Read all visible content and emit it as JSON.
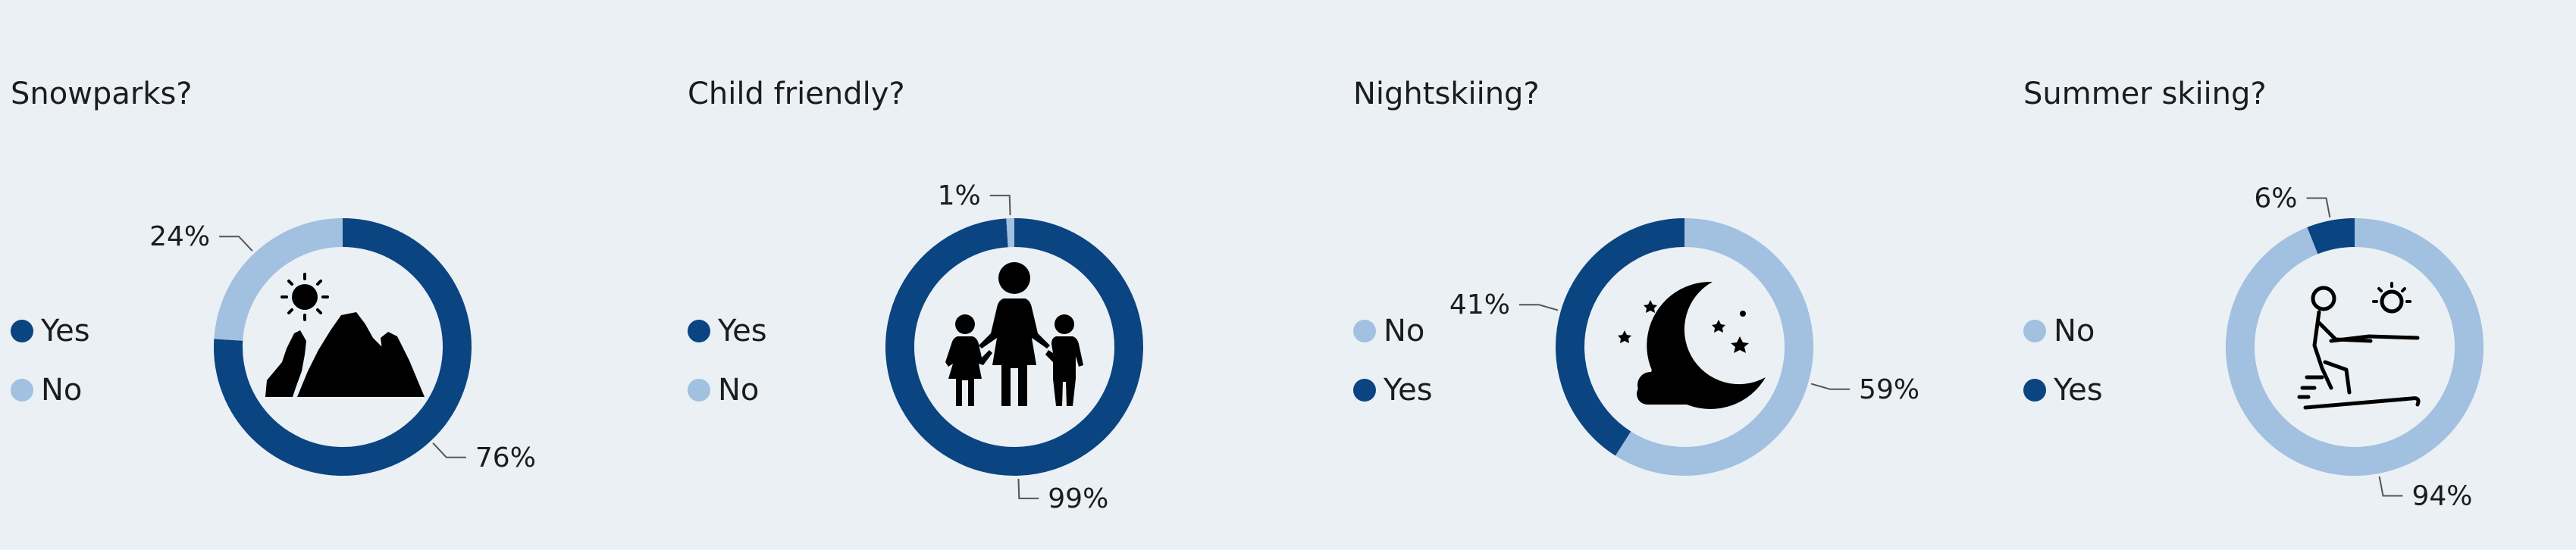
{
  "colors": {
    "yes": "#0a4481",
    "no": "#a2c0e0",
    "background": "#ebf0f4",
    "icon": "#000000"
  },
  "chart_data": [
    {
      "type": "pie",
      "title": "Snowparks?",
      "icon": "mountain-sun-icon",
      "legend": [
        "Yes",
        "No"
      ],
      "series": [
        {
          "name": "Yes",
          "value": 76,
          "label": "76%",
          "color": "#0a4481"
        },
        {
          "name": "No",
          "value": 24,
          "label": "24%",
          "color": "#a2c0e0"
        }
      ]
    },
    {
      "type": "pie",
      "title": "Child friendly?",
      "icon": "family-icon",
      "legend": [
        "Yes",
        "No"
      ],
      "series": [
        {
          "name": "Yes",
          "value": 99,
          "label": "99%",
          "color": "#0a4481"
        },
        {
          "name": "No",
          "value": 1,
          "label": "1%",
          "color": "#a2c0e0"
        }
      ]
    },
    {
      "type": "pie",
      "title": "Nightskiing?",
      "icon": "moon-night-icon",
      "legend": [
        "No",
        "Yes"
      ],
      "series": [
        {
          "name": "No",
          "value": 59,
          "label": "59%",
          "color": "#a2c0e0"
        },
        {
          "name": "Yes",
          "value": 41,
          "label": "41%",
          "color": "#0a4481"
        }
      ]
    },
    {
      "type": "pie",
      "title": "Summer skiing?",
      "icon": "summer-skier-icon",
      "legend": [
        "No",
        "Yes"
      ],
      "series": [
        {
          "name": "No",
          "value": 94,
          "label": "94%",
          "color": "#a2c0e0"
        },
        {
          "name": "Yes",
          "value": 6,
          "label": "6%",
          "color": "#0a4481"
        }
      ]
    }
  ]
}
